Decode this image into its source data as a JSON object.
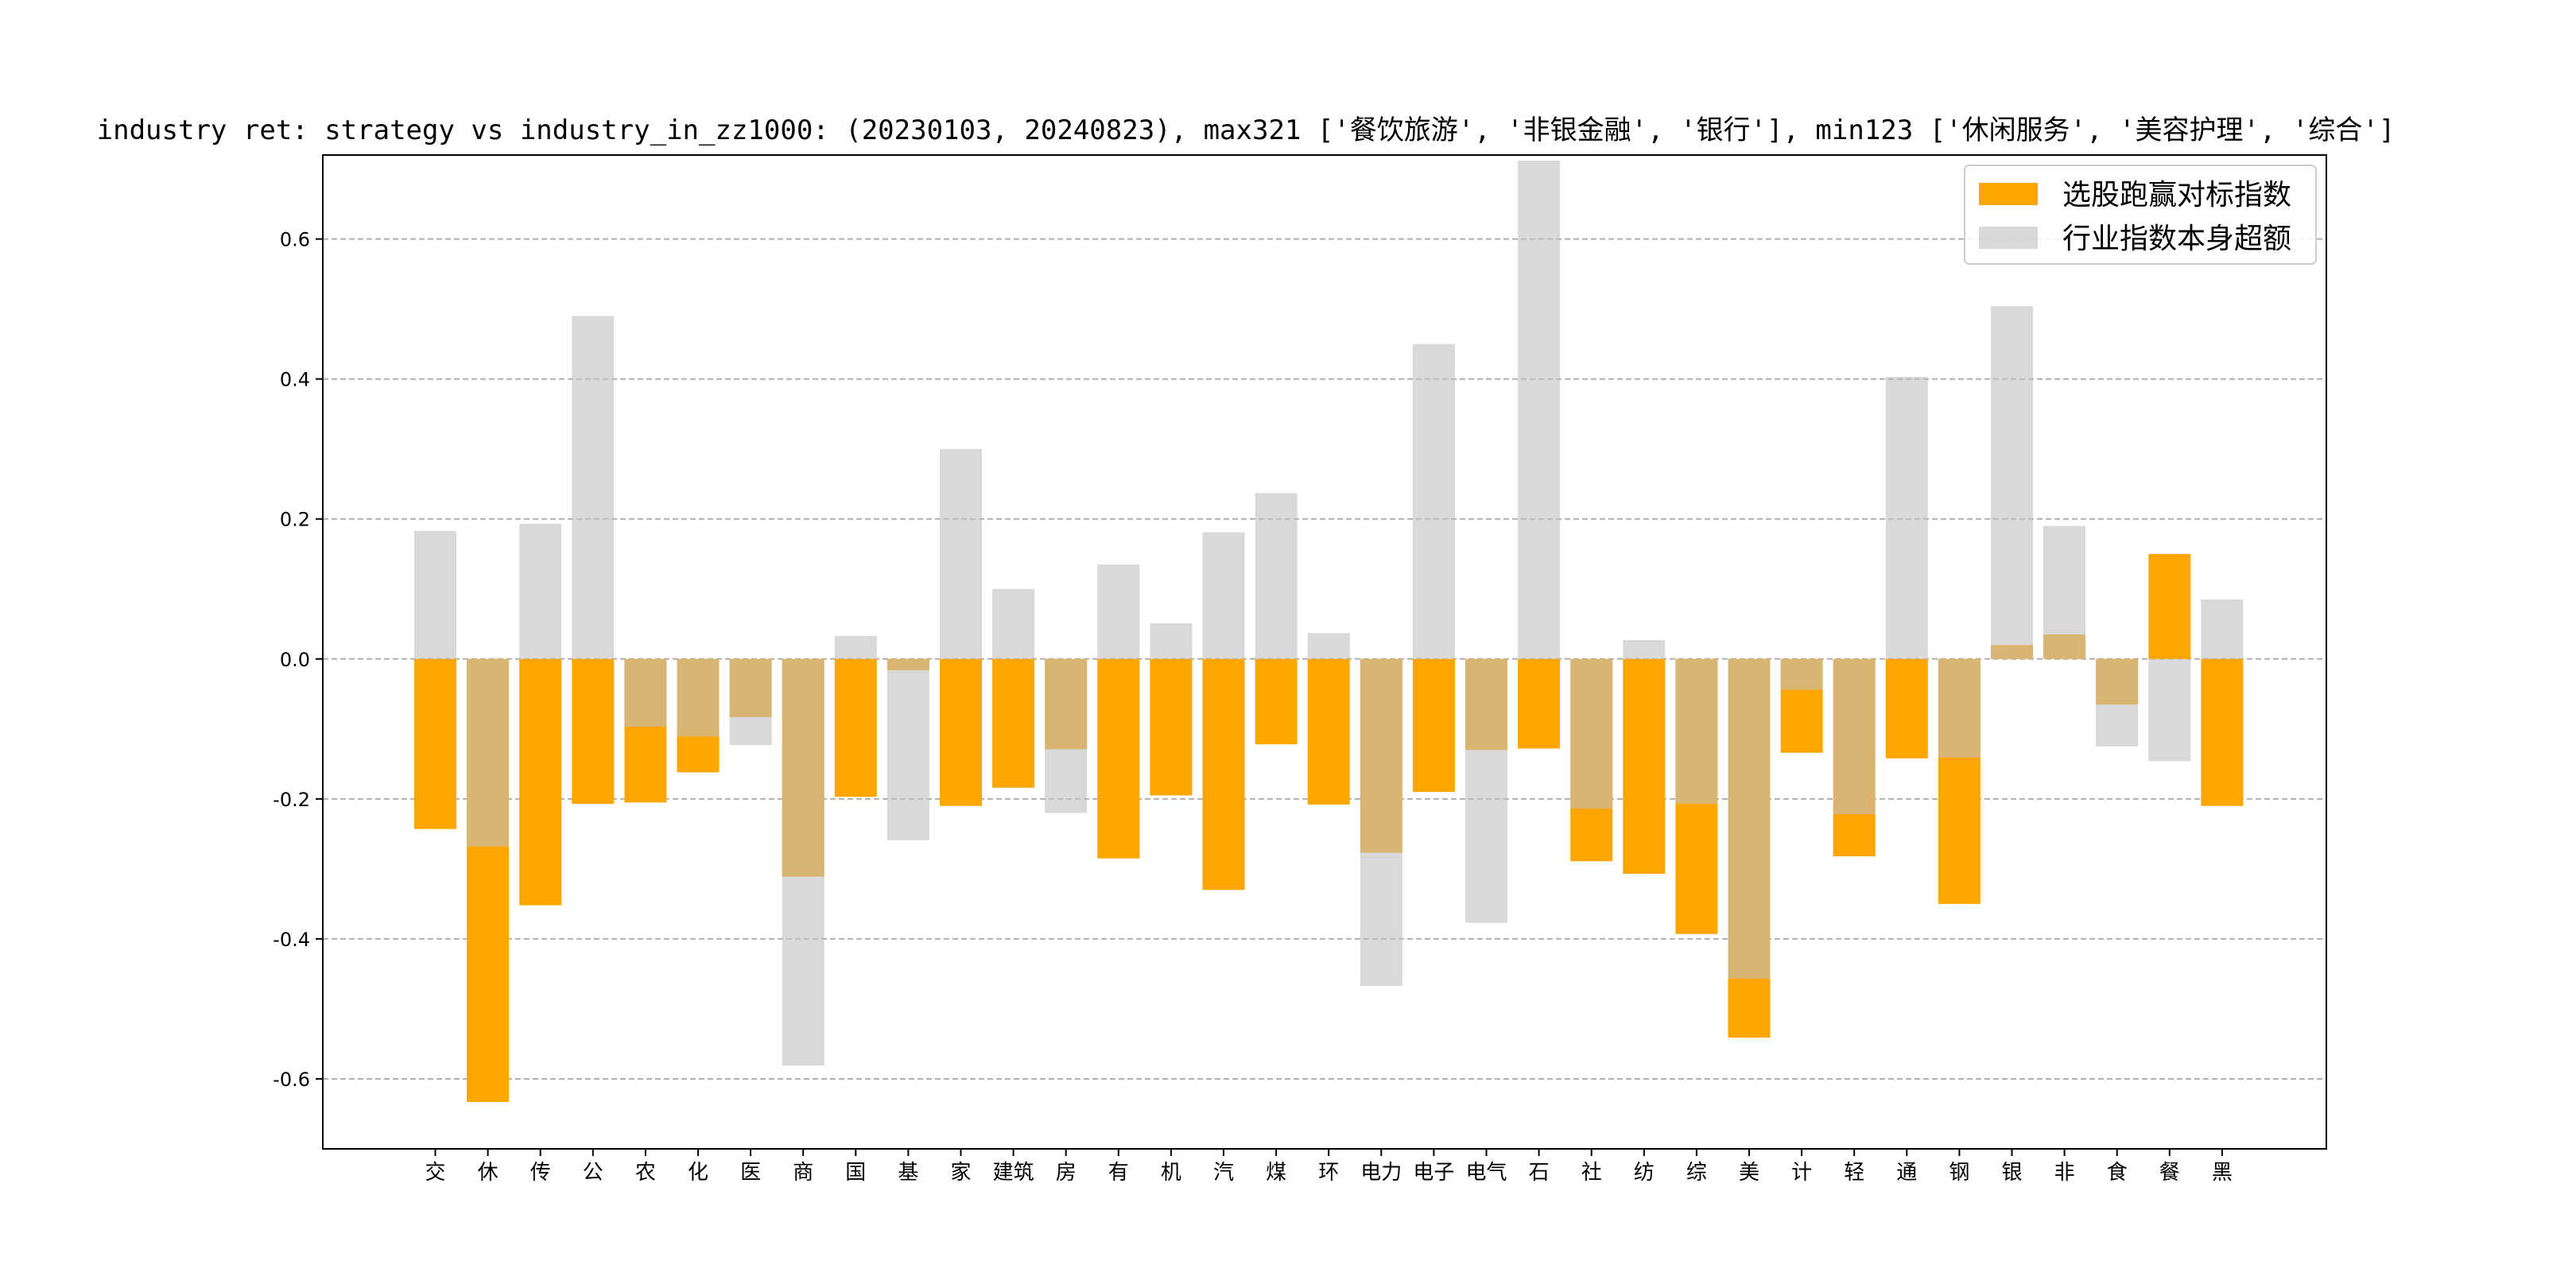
{
  "chart_data": {
    "type": "bar",
    "title": "industry ret: strategy vs industry_in_zz1000: (20230103, 20240823), max321 ['餐饮旅游', '非银金融', '银行'], min123 ['休闲服务', '美容护理', '综合']",
    "xlabel": "",
    "ylabel": "",
    "ylim": [
      -0.7,
      0.72
    ],
    "yticks": [
      -0.6,
      -0.4,
      -0.2,
      0.0,
      0.2,
      0.4,
      0.6
    ],
    "ytick_labels": [
      "-0.6",
      "-0.4",
      "-0.2",
      "0.0",
      "0.2",
      "0.4",
      "0.6"
    ],
    "grid": "y-dashed",
    "legend_position": "top-right",
    "categories": [
      "交",
      "休",
      "传",
      "公",
      "农",
      "化",
      "医",
      "商",
      "国",
      "基",
      "家",
      "建筑",
      "房",
      "有",
      "机",
      "汽",
      "煤",
      "环",
      "电力",
      "电子",
      "电气",
      "石",
      "社",
      "纺",
      "综",
      "美",
      "计",
      "轻",
      "通",
      "钢",
      "银",
      "非",
      "食",
      "餐",
      "黑"
    ],
    "series": [
      {
        "name": "选股跑赢对标指数",
        "color": "#FFA500",
        "values": [
          -0.243,
          -0.633,
          -0.352,
          -0.207,
          -0.205,
          -0.162,
          -0.083,
          -0.311,
          -0.197,
          -0.016,
          -0.21,
          -0.184,
          -0.129,
          -0.285,
          -0.195,
          -0.33,
          -0.122,
          -0.208,
          -0.277,
          -0.19,
          -0.13,
          -0.128,
          -0.289,
          -0.307,
          -0.393,
          -0.541,
          -0.134,
          -0.282,
          -0.142,
          -0.35,
          0.02,
          0.035,
          -0.065,
          0.15,
          -0.21
        ]
      },
      {
        "name": "行业指数本身超额",
        "color": "#C0C0C0",
        "values": [
          0.183,
          -0.268,
          0.193,
          0.49,
          -0.097,
          -0.111,
          -0.123,
          -0.581,
          0.033,
          -0.259,
          0.3,
          0.1,
          -0.22,
          0.135,
          0.051,
          0.181,
          0.237,
          0.037,
          -0.467,
          0.45,
          -0.377,
          0.712,
          -0.214,
          0.027,
          -0.207,
          -0.457,
          -0.044,
          -0.222,
          0.403,
          -0.141,
          0.504,
          0.19,
          -0.125,
          -0.146,
          0.085
        ]
      }
    ]
  }
}
